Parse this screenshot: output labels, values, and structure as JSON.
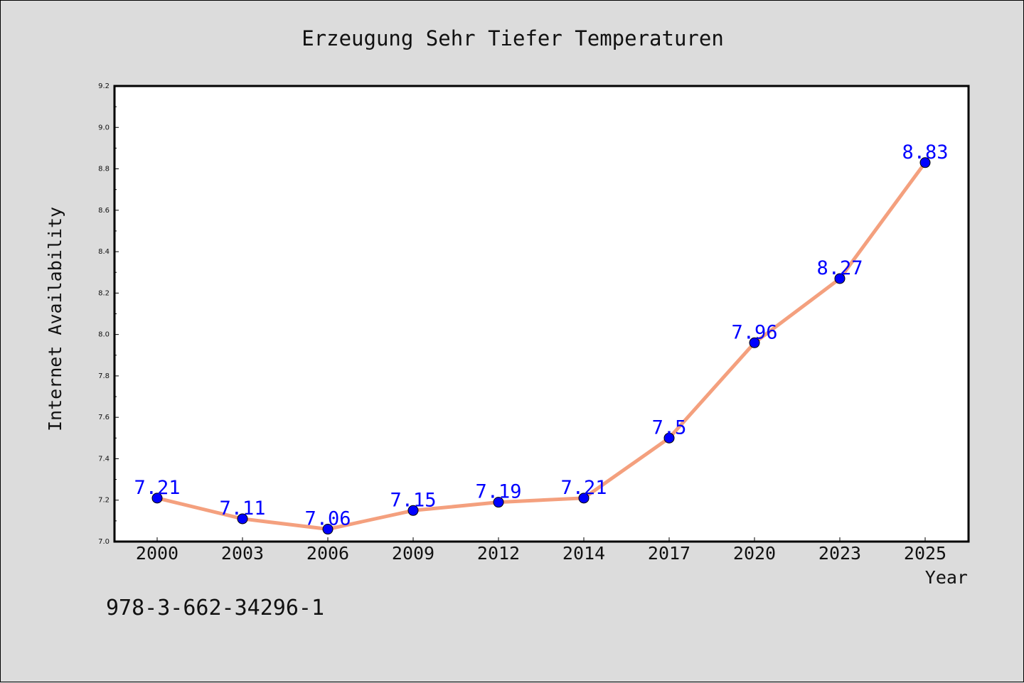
{
  "chart_data": {
    "type": "line",
    "title": "Erzeugung Sehr Tiefer Temperaturen",
    "xlabel": "Year",
    "ylabel": "Internet Availability",
    "x": [
      "2000",
      "2003",
      "2006",
      "2009",
      "2012",
      "2014",
      "2017",
      "2020",
      "2023",
      "2025"
    ],
    "series": [
      {
        "values": [
          7.21,
          7.11,
          7.06,
          7.15,
          7.19,
          7.21,
          7.5,
          7.96,
          8.27,
          8.83
        ],
        "data_labels": [
          "7.21",
          "7.11",
          "7.06",
          "7.15",
          "7.19",
          "7.21",
          "7.5",
          "7.96",
          "8.27",
          "8.83"
        ],
        "line_color": "#f4a07e",
        "marker_color": "#0000ff"
      }
    ],
    "ylim": [
      7.0,
      9.2
    ],
    "yticks": [
      "7.0",
      "7.2",
      "7.4",
      "7.6",
      "7.8",
      "8.0",
      "8.2",
      "8.4",
      "8.6",
      "8.8",
      "9.0",
      "9.2"
    ],
    "grid": false,
    "legend": "none",
    "colors": {
      "page_background": "#dcdcdc",
      "plot_background": "#ffffff",
      "label_color": "#0000ff"
    }
  },
  "footer": {
    "isbn": "978-3-662-34296-1"
  }
}
